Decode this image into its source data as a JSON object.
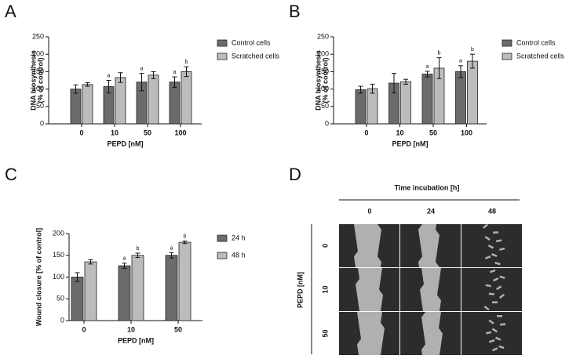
{
  "panel_labels": [
    "A",
    "B",
    "C",
    "D"
  ],
  "chart_data": [
    {
      "type": "bar",
      "x_label": "PEPD [nM]",
      "y_label": [
        "DNA biosynthesis",
        "(% of control)"
      ],
      "categories": [
        "0",
        "10",
        "50",
        "100"
      ],
      "series": [
        {
          "name": "Control cells",
          "color": "#6b6b6b",
          "values": [
            100,
            107,
            120,
            120
          ],
          "errors": [
            12,
            18,
            25,
            15
          ],
          "annotations": [
            null,
            "a",
            "a",
            "a"
          ]
        },
        {
          "name": "Scratched cells",
          "color": "#bcbcbc",
          "values": [
            113,
            133,
            140,
            150
          ],
          "errors": [
            5,
            14,
            10,
            14
          ],
          "annotations": [
            null,
            null,
            null,
            "b"
          ]
        }
      ],
      "ylim": [
        0,
        250
      ],
      "yticks": [
        0,
        50,
        100,
        150,
        200,
        250
      ],
      "legend": "right"
    },
    {
      "type": "bar",
      "x_label": "PEPD [nM]",
      "y_label": [
        "DNA biosynthesis",
        "(% of control)"
      ],
      "categories": [
        "0",
        "10",
        "50",
        "100"
      ],
      "series": [
        {
          "name": "Control cells",
          "color": "#6b6b6b",
          "values": [
            98,
            117,
            143,
            150
          ],
          "errors": [
            10,
            28,
            8,
            17
          ],
          "annotations": [
            null,
            null,
            "a",
            "a"
          ]
        },
        {
          "name": "Scratched cells",
          "color": "#bcbcbc",
          "values": [
            101,
            121,
            160,
            180
          ],
          "errors": [
            13,
            7,
            30,
            20
          ],
          "annotations": [
            null,
            null,
            "b",
            "b"
          ]
        }
      ],
      "ylim": [
        0,
        250
      ],
      "yticks": [
        0,
        50,
        100,
        150,
        200,
        250
      ],
      "legend": "right"
    },
    {
      "type": "bar",
      "x_label": "PEPD [nM]",
      "y_label": [
        "Wound closure [% of control]"
      ],
      "categories": [
        "0",
        "10",
        "50"
      ],
      "series": [
        {
          "name": "24 h",
          "color": "#6b6b6b",
          "values": [
            100,
            126,
            150
          ],
          "errors": [
            10,
            6,
            6
          ],
          "annotations": [
            null,
            "a",
            "a"
          ]
        },
        {
          "name": "48 h",
          "color": "#bcbcbc",
          "values": [
            135,
            150,
            180
          ],
          "errors": [
            5,
            5,
            3
          ],
          "annotations": [
            null,
            "b",
            "b"
          ]
        }
      ],
      "ylim": [
        0,
        200
      ],
      "yticks": [
        0,
        50,
        100,
        150,
        200
      ],
      "legend": "right"
    }
  ],
  "image_grid": {
    "column_title": "Time incubation [h]",
    "columns": [
      "0",
      "24",
      "48"
    ],
    "row_title": "PEPD [nM]",
    "rows": [
      "0",
      "10",
      "50"
    ]
  }
}
